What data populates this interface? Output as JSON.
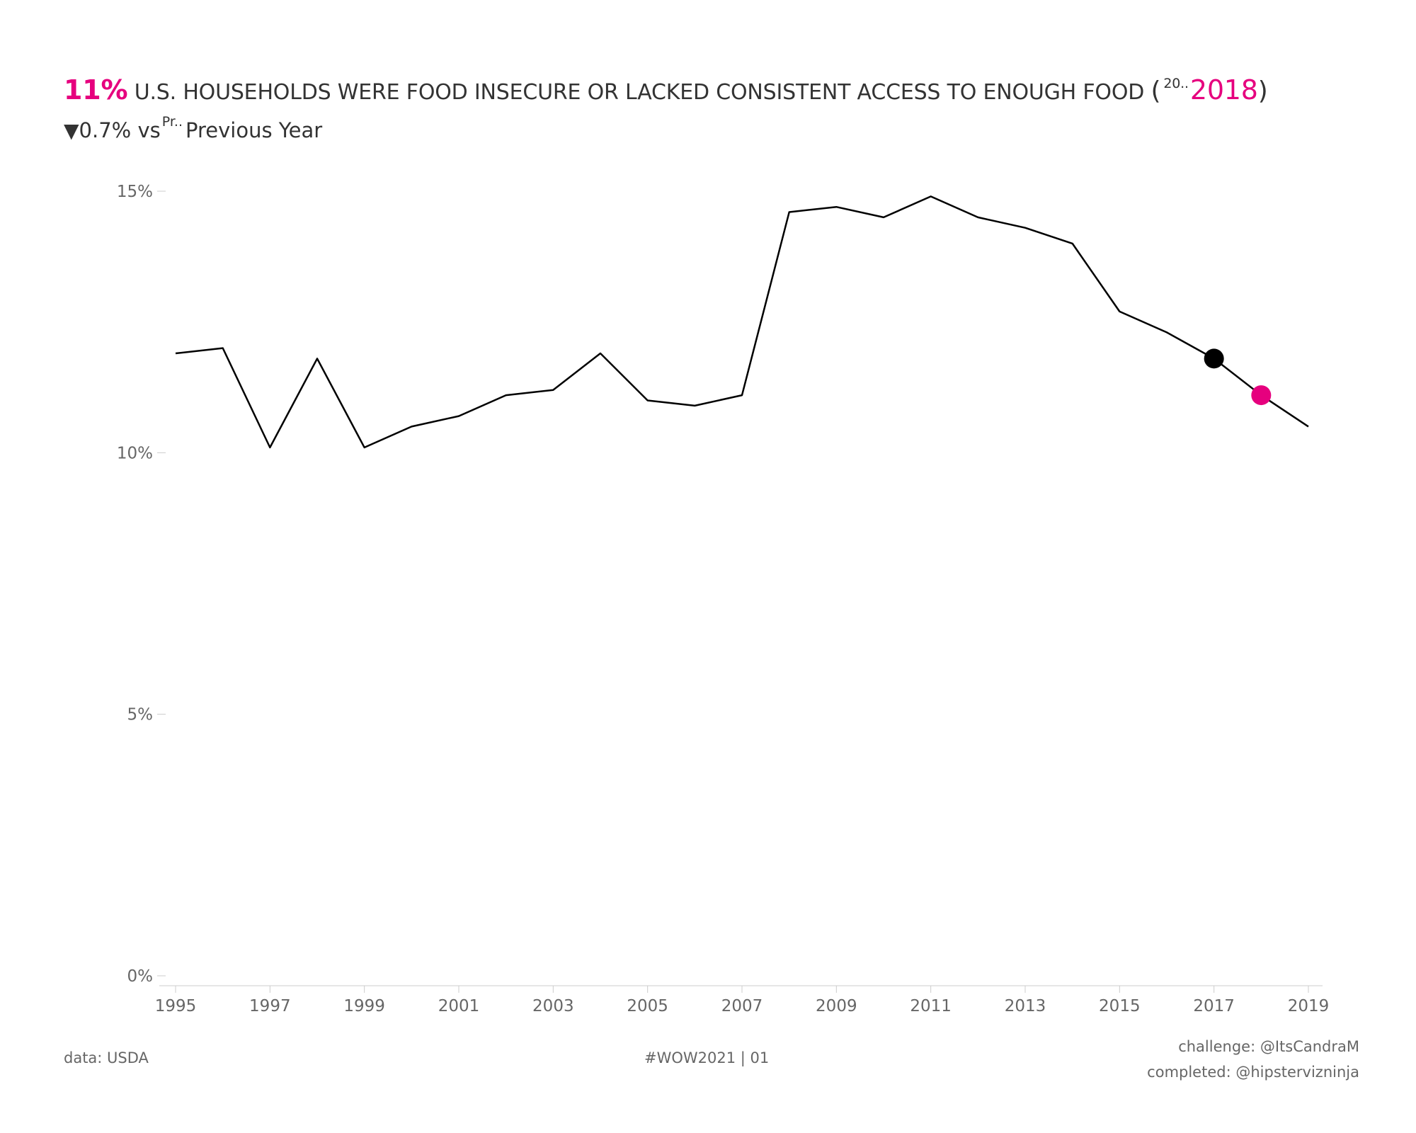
{
  "header": {
    "headline_value": "11%",
    "headline_text": "U.S. HOUSEHOLDS WERE FOOD INSECURE OR LACKED CONSISTENT ACCESS TO ENOUGH FOOD",
    "open_paren": "(",
    "year_selector_hint": "20..",
    "selected_year": "2018",
    "close_paren": ")",
    "change_symbol": "▼",
    "change_value": "0.7% vs",
    "compare_selector_hint": "Pr..",
    "compare_label": "Previous Year"
  },
  "colors": {
    "accent": "#e6007e",
    "line": "#000000",
    "text": "#333333",
    "muted": "#666666",
    "axis": "#cccccc"
  },
  "chart_data": {
    "type": "line",
    "x": [
      1995,
      1996,
      1997,
      1998,
      1999,
      2000,
      2001,
      2002,
      2003,
      2004,
      2005,
      2006,
      2007,
      2008,
      2009,
      2010,
      2011,
      2012,
      2013,
      2014,
      2015,
      2016,
      2017,
      2018,
      2019
    ],
    "series": [
      {
        "values": [
          11.9,
          12.0,
          10.1,
          11.8,
          10.1,
          10.5,
          10.7,
          11.1,
          11.2,
          11.9,
          11.0,
          10.9,
          11.1,
          14.6,
          14.7,
          14.5,
          14.9,
          14.5,
          14.3,
          14.0,
          12.7,
          12.3,
          11.8,
          11.1,
          10.5
        ]
      }
    ],
    "highlights": [
      {
        "x": 2017,
        "y": 11.8,
        "color": "#000000"
      },
      {
        "x": 2018,
        "y": 11.1,
        "color": "#e6007e"
      }
    ],
    "y_ticks": [
      0,
      5,
      10,
      15
    ],
    "y_tick_labels": [
      "0%",
      "5%",
      "10%",
      "15%"
    ],
    "x_ticks": [
      1995,
      1997,
      1999,
      2001,
      2003,
      2005,
      2007,
      2009,
      2011,
      2013,
      2015,
      2017,
      2019
    ],
    "x_tick_labels": [
      "1995",
      "1997",
      "1999",
      "2001",
      "2003",
      "2005",
      "2007",
      "2009",
      "2011",
      "2013",
      "2015",
      "2017",
      "2019"
    ],
    "ylim": [
      0,
      15
    ],
    "xlim": [
      1995,
      2019
    ],
    "grid": false
  },
  "footer": {
    "source": "data: USDA",
    "tag": "#WOW2021 | 01",
    "challenge": "challenge: @ItsCandraM",
    "completed": "completed: @hipstervizninja"
  }
}
